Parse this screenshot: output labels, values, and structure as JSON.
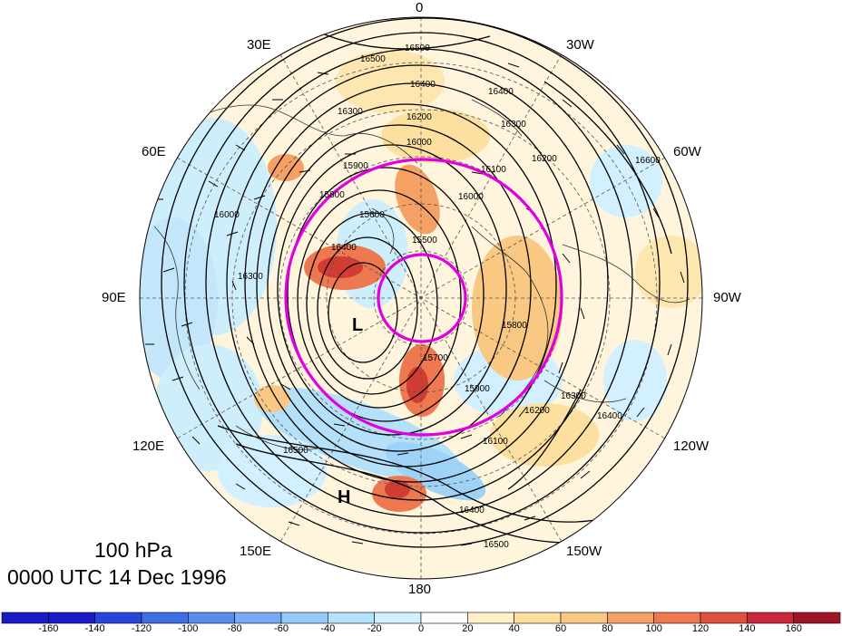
{
  "title": {
    "level": "100 hPa",
    "time": "0000 UTC 14 Dec 1996"
  },
  "longitude_labels": {
    "0": "0",
    "30W": "30W",
    "60W": "60W",
    "90W": "90W",
    "120W": "120W",
    "150W": "150W",
    "180": "180",
    "150E": "150E",
    "120E": "120E",
    "90E": "90E",
    "60E": "60E",
    "30E": "30E"
  },
  "pressure_centers": {
    "low": "L",
    "high": "H"
  },
  "contour_labels": [
    "16500",
    "16500",
    "16400",
    "16400",
    "16300",
    "16300",
    "16200",
    "16200",
    "16100",
    "16000",
    "16000",
    "15900",
    "15900",
    "15800",
    "15600",
    "15500",
    "15700",
    "16400",
    "16300",
    "16200",
    "16100",
    "16500",
    "16400",
    "16500",
    "16300",
    "16400",
    "15800",
    "16000",
    "16600"
  ],
  "colorbar": {
    "ticks": [
      "-160",
      "-140",
      "-120",
      "-100",
      "-80",
      "-60",
      "-40",
      "-20",
      "0",
      "20",
      "40",
      "60",
      "80",
      "100",
      "120",
      "140",
      "160"
    ],
    "colors": [
      "#1a1ac8",
      "#2846dc",
      "#3c6ee6",
      "#5a8cf0",
      "#78aaf5",
      "#96c8fa",
      "#b4e1fc",
      "#d2f0ff",
      "#ffffff",
      "#fff0c8",
      "#fde0a0",
      "#f9c882",
      "#f5a064",
      "#ee7850",
      "#e0503c",
      "#c8283a",
      "#a01428"
    ]
  },
  "colors": {
    "magenta_circle": "#e100e1",
    "contour": "#000000"
  }
}
